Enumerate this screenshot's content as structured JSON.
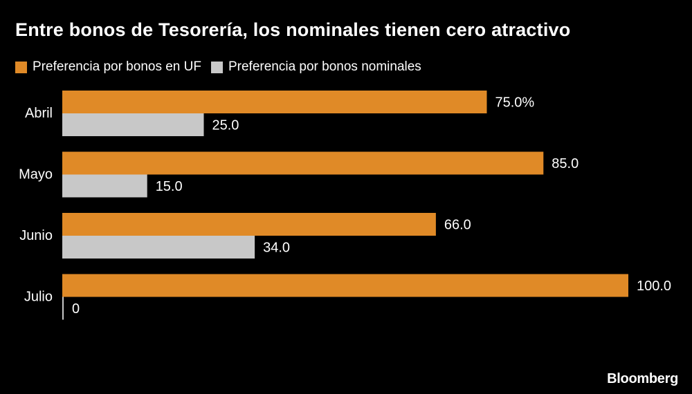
{
  "colors": {
    "background": "#000000",
    "uf": "#e08a27",
    "nominal": "#c8c8c8",
    "text": "#ffffff"
  },
  "chart_data": {
    "type": "bar",
    "orientation": "horizontal",
    "title": "Entre bonos de Tesorería, los nominales tienen cero atractivo",
    "categories": [
      "Abril",
      "Mayo",
      "Junio",
      "Julio"
    ],
    "series": [
      {
        "name": "Preferencia por bonos en UF",
        "values": [
          75.0,
          85.0,
          66.0,
          100.0
        ],
        "labels": [
          "75.0%",
          "85.0",
          "66.0",
          "100.0"
        ]
      },
      {
        "name": "Preferencia por bonos nominales",
        "values": [
          25.0,
          15.0,
          34.0,
          0
        ],
        "labels": [
          "25.0",
          "15.0",
          "34.0",
          "0"
        ]
      }
    ],
    "xlim": [
      0,
      100
    ],
    "grid": false,
    "legend": "top-left"
  },
  "source": "Bloomberg"
}
